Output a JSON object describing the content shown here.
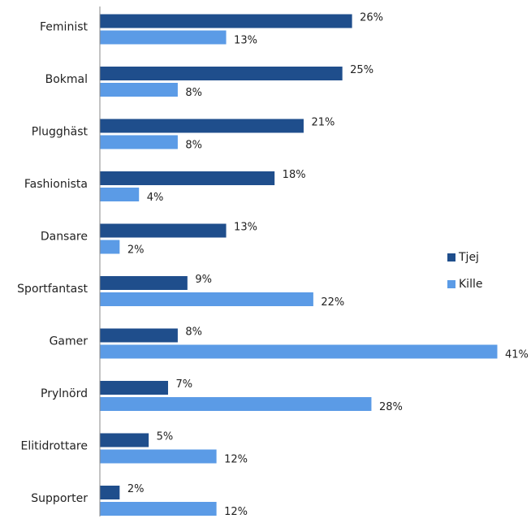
{
  "chart_data": {
    "type": "bar",
    "orientation": "horizontal",
    "categories": [
      "Feminist",
      "Bokmal",
      "Plugghäst",
      "Fashionista",
      "Dansare",
      "Sportfantast",
      "Gamer",
      "Prylnörd",
      "Elitidrottare",
      "Supporter"
    ],
    "series": [
      {
        "name": "Tjej",
        "values": [
          26,
          25,
          21,
          18,
          13,
          9,
          8,
          7,
          5,
          2
        ],
        "color": "#1F4E8C"
      },
      {
        "name": "Kille",
        "values": [
          13,
          8,
          8,
          4,
          2,
          22,
          41,
          28,
          12,
          12
        ],
        "color": "#5B9BE6"
      }
    ],
    "value_suffix": "%",
    "xlim": [
      0,
      41
    ],
    "grid": false,
    "legend_position": "right"
  }
}
